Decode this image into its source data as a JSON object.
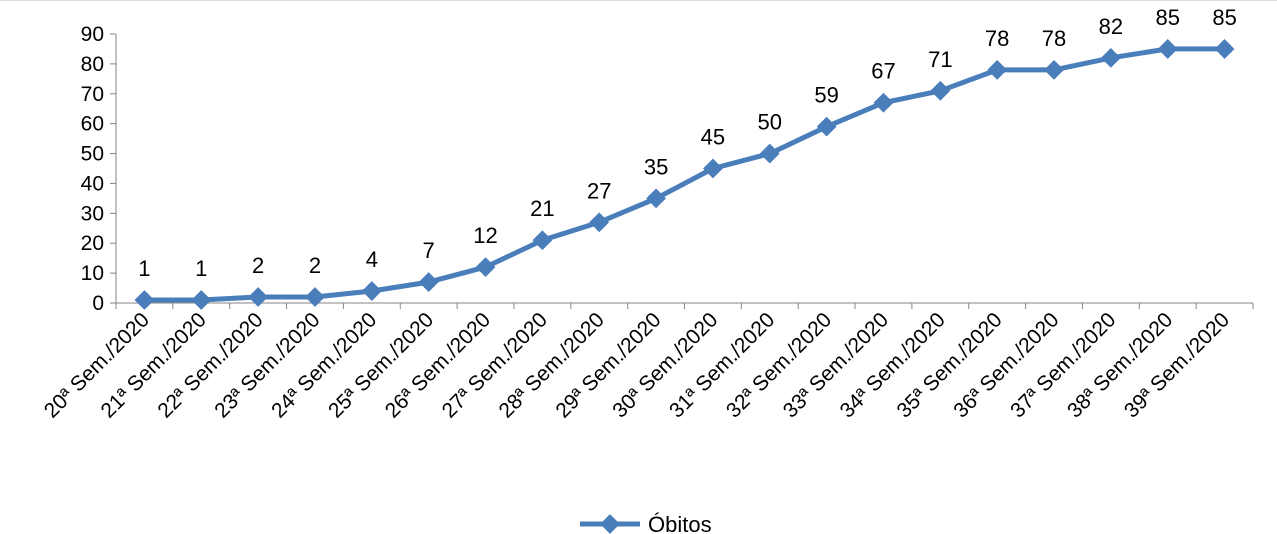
{
  "chart_data": {
    "type": "line",
    "title": "",
    "xlabel": "",
    "ylabel": "",
    "ylim": [
      0,
      90
    ],
    "yticks": [
      0,
      10,
      20,
      30,
      40,
      50,
      60,
      70,
      80,
      90
    ],
    "grid": false,
    "legend_position": "bottom",
    "series_color": "#4a7ebb",
    "categories": [
      "20ª Sem./2020",
      "21ª Sem./2020",
      "22ª Sem./2020",
      "23ª Sem./2020",
      "24ª Sem./2020",
      "25ª Sem./2020",
      "26ª Sem./2020",
      "27ª Sem./2020",
      "28ª Sem./2020",
      "29ª Sem./2020",
      "30ª Sem./2020",
      "31ª Sem./2020",
      "32ª Sem./2020",
      "33ª Sem./2020",
      "34ª Sem./2020",
      "35ª Sem./2020",
      "36ª Sem./2020",
      "37ª Sem./2020",
      "38ª Sem./2020",
      "39ª Sem./2020"
    ],
    "series": [
      {
        "name": "Óbitos",
        "values": [
          1,
          1,
          2,
          2,
          4,
          7,
          12,
          21,
          27,
          35,
          45,
          50,
          59,
          67,
          71,
          78,
          78,
          82,
          85,
          85
        ]
      }
    ]
  }
}
